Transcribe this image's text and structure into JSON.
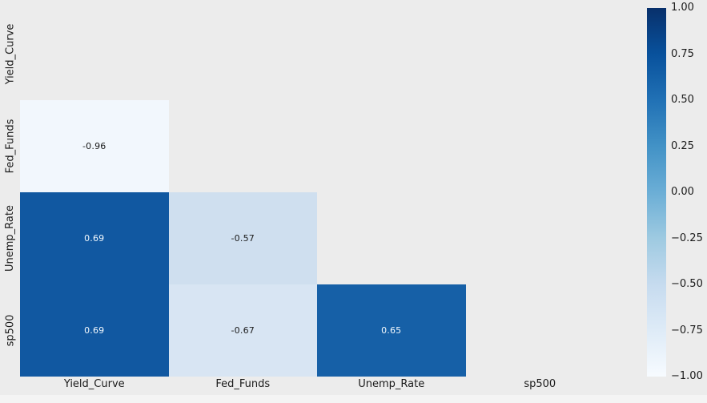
{
  "figure": {
    "background_color": "#ececec",
    "bottom_edge_color": "#f4f4f4",
    "tick_label_color": "#1a1a1a"
  },
  "chart_data": {
    "type": "heatmap",
    "subtype": "correlation-matrix-lower-triangle",
    "title": "",
    "variables": [
      "Yield_Curve",
      "Fed_Funds",
      "Unemp_Rate",
      "sp500"
    ],
    "x_tick_labels": [
      "Yield_Curve",
      "Fed_Funds",
      "Unemp_Rate",
      "sp500"
    ],
    "y_tick_labels": [
      "Yield_Curve",
      "Fed_Funds",
      "Unemp_Rate",
      "sp500"
    ],
    "mask": "upper triangle and diagonal masked (figure background shows through)",
    "colormap": "Blues",
    "vmin": -1.0,
    "vmax": 1.0,
    "grid": false,
    "cells": [
      {
        "row": 1,
        "col": 0,
        "row_label": "Fed_Funds",
        "col_label": "Yield_Curve",
        "value": -0.96,
        "label": "-0.96",
        "bg": "#f2f7fd",
        "fg": "#1a1a1a"
      },
      {
        "row": 2,
        "col": 0,
        "row_label": "Unemp_Rate",
        "col_label": "Yield_Curve",
        "value": 0.69,
        "label": "0.69",
        "bg": "#1158a1",
        "fg": "#f2f8fd"
      },
      {
        "row": 2,
        "col": 1,
        "row_label": "Unemp_Rate",
        "col_label": "Fed_Funds",
        "value": -0.57,
        "label": "-0.57",
        "bg": "#cfdfef",
        "fg": "#1a1a1a"
      },
      {
        "row": 3,
        "col": 0,
        "row_label": "sp500",
        "col_label": "Yield_Curve",
        "value": 0.69,
        "label": "0.69",
        "bg": "#1158a1",
        "fg": "#f2f8fd"
      },
      {
        "row": 3,
        "col": 1,
        "row_label": "sp500",
        "col_label": "Fed_Funds",
        "value": -0.67,
        "label": "-0.67",
        "bg": "#d8e5f3",
        "fg": "#1a1a1a"
      },
      {
        "row": 3,
        "col": 2,
        "row_label": "sp500",
        "col_label": "Unemp_Rate",
        "value": 0.65,
        "label": "0.65",
        "bg": "#1660a7",
        "fg": "#f2f8fd"
      }
    ],
    "colorbar": {
      "position": "right",
      "tick_labels": [
        "1.00",
        "0.75",
        "0.50",
        "0.25",
        "0.00",
        "−0.25",
        "−0.50",
        "−0.75",
        "−1.00"
      ],
      "tick_values": [
        1.0,
        0.75,
        0.5,
        0.25,
        0.0,
        -0.25,
        -0.5,
        -0.75,
        -1.0
      ],
      "gradient_stops_top_to_bottom": [
        "#08306b",
        "#08519c",
        "#2171b5",
        "#4292c6",
        "#6baed6",
        "#9ecae1",
        "#c6dbef",
        "#deebf7",
        "#f7fbff"
      ]
    }
  }
}
